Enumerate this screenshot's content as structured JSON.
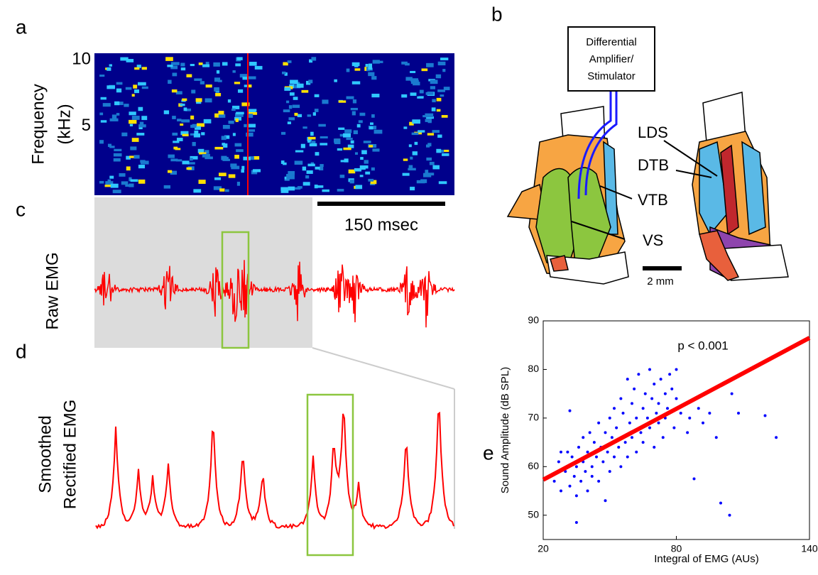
{
  "panel_labels": [
    "a",
    "b",
    "c",
    "d",
    "e"
  ],
  "panel_a": {
    "y_label": [
      "Frequency",
      "(kHz)"
    ],
    "yticks": [
      10,
      5
    ],
    "ylim": [
      -0.2,
      10.5
    ],
    "scale_bar": "150 msec"
  },
  "panel_b": {
    "box_label": [
      "Differential",
      "Amplifier/",
      "Stimulator"
    ],
    "labels": [
      "LDS",
      "DTB",
      "VTB",
      "VS"
    ],
    "scale_bar": "2 mm"
  },
  "panel_c": {
    "y_label": "Raw EMG"
  },
  "panel_d": {
    "y_label": [
      "Smoothed",
      "Rectified EMG"
    ]
  },
  "chart_data": {
    "type": "scatter",
    "x_label": "Integral of EMG (AUs)",
    "y_label": "Sound Amplitude (dB SPL)",
    "annotation": "p < 0.001",
    "xlim": [
      20,
      140
    ],
    "xticks": [
      20,
      80,
      140
    ],
    "ylim": [
      45,
      90
    ],
    "yticks": [
      50,
      60,
      70,
      80,
      90
    ],
    "series": [
      {
        "color": "#0000ff",
        "x": [
          25,
          27,
          28,
          30,
          31,
          32,
          33,
          34,
          35,
          35,
          36,
          37,
          38,
          38,
          39,
          40,
          40,
          41,
          42,
          42,
          43,
          44,
          45,
          45,
          46,
          47,
          48,
          48,
          49,
          50,
          50,
          51,
          52,
          52,
          53,
          54,
          55,
          55,
          56,
          57,
          58,
          58,
          59,
          60,
          60,
          61,
          62,
          62,
          63,
          64,
          65,
          65,
          66,
          67,
          68,
          68,
          69,
          70,
          70,
          71,
          72,
          72,
          73,
          74,
          75,
          75,
          76,
          77,
          78,
          79,
          80,
          80,
          82,
          84,
          85,
          86,
          88,
          90,
          92,
          95,
          98,
          100,
          104,
          105,
          108,
          120,
          125,
          35,
          28,
          32
        ],
        "values": [
          57,
          61,
          55,
          59,
          63,
          56,
          62,
          58,
          60,
          54,
          64,
          57,
          61,
          66,
          59,
          63,
          55,
          67,
          60,
          58,
          65,
          62,
          57,
          69,
          64,
          61,
          67,
          53,
          63,
          70,
          59,
          66,
          72,
          62,
          68,
          64,
          74,
          60,
          71,
          65,
          78,
          62,
          69,
          73,
          66,
          76,
          63,
          70,
          79,
          67,
          72,
          65,
          75,
          70,
          80,
          68,
          74,
          64,
          77,
          71,
          73,
          69,
          78,
          66,
          75,
          70,
          72,
          79,
          76,
          68,
          74,
          80,
          71,
          73,
          67,
          70,
          57.5,
          72,
          69,
          71,
          66,
          52.5,
          50,
          75,
          71,
          70.5,
          66,
          48.5,
          63,
          71.5
        ]
      }
    ],
    "fit_line": {
      "color": "#ff0000",
      "x": [
        20,
        140
      ],
      "values": [
        57.3,
        86.5
      ]
    }
  }
}
